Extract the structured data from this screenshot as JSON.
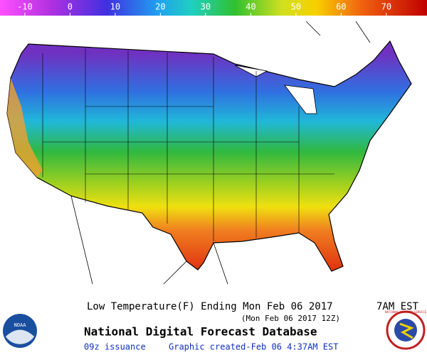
{
  "colorbar": {
    "range": [
      -15.5,
      79
    ],
    "ticks": [
      -10,
      0,
      10,
      20,
      30,
      40,
      50,
      60,
      70
    ]
  },
  "logos": {
    "noaa": "NOAA",
    "nws": "NATIONAL WEATHER SERVICE"
  },
  "footer": {
    "title": "Low Temperature(F) Ending Mon Feb 06 2017",
    "time": "7AM EST",
    "subtitle": "(Mon Feb 06 2017 12Z)",
    "database": "National Digital Forecast Database",
    "issuance": "09z issuance",
    "created": "Graphic created-Feb 06  4:37AM EST"
  }
}
